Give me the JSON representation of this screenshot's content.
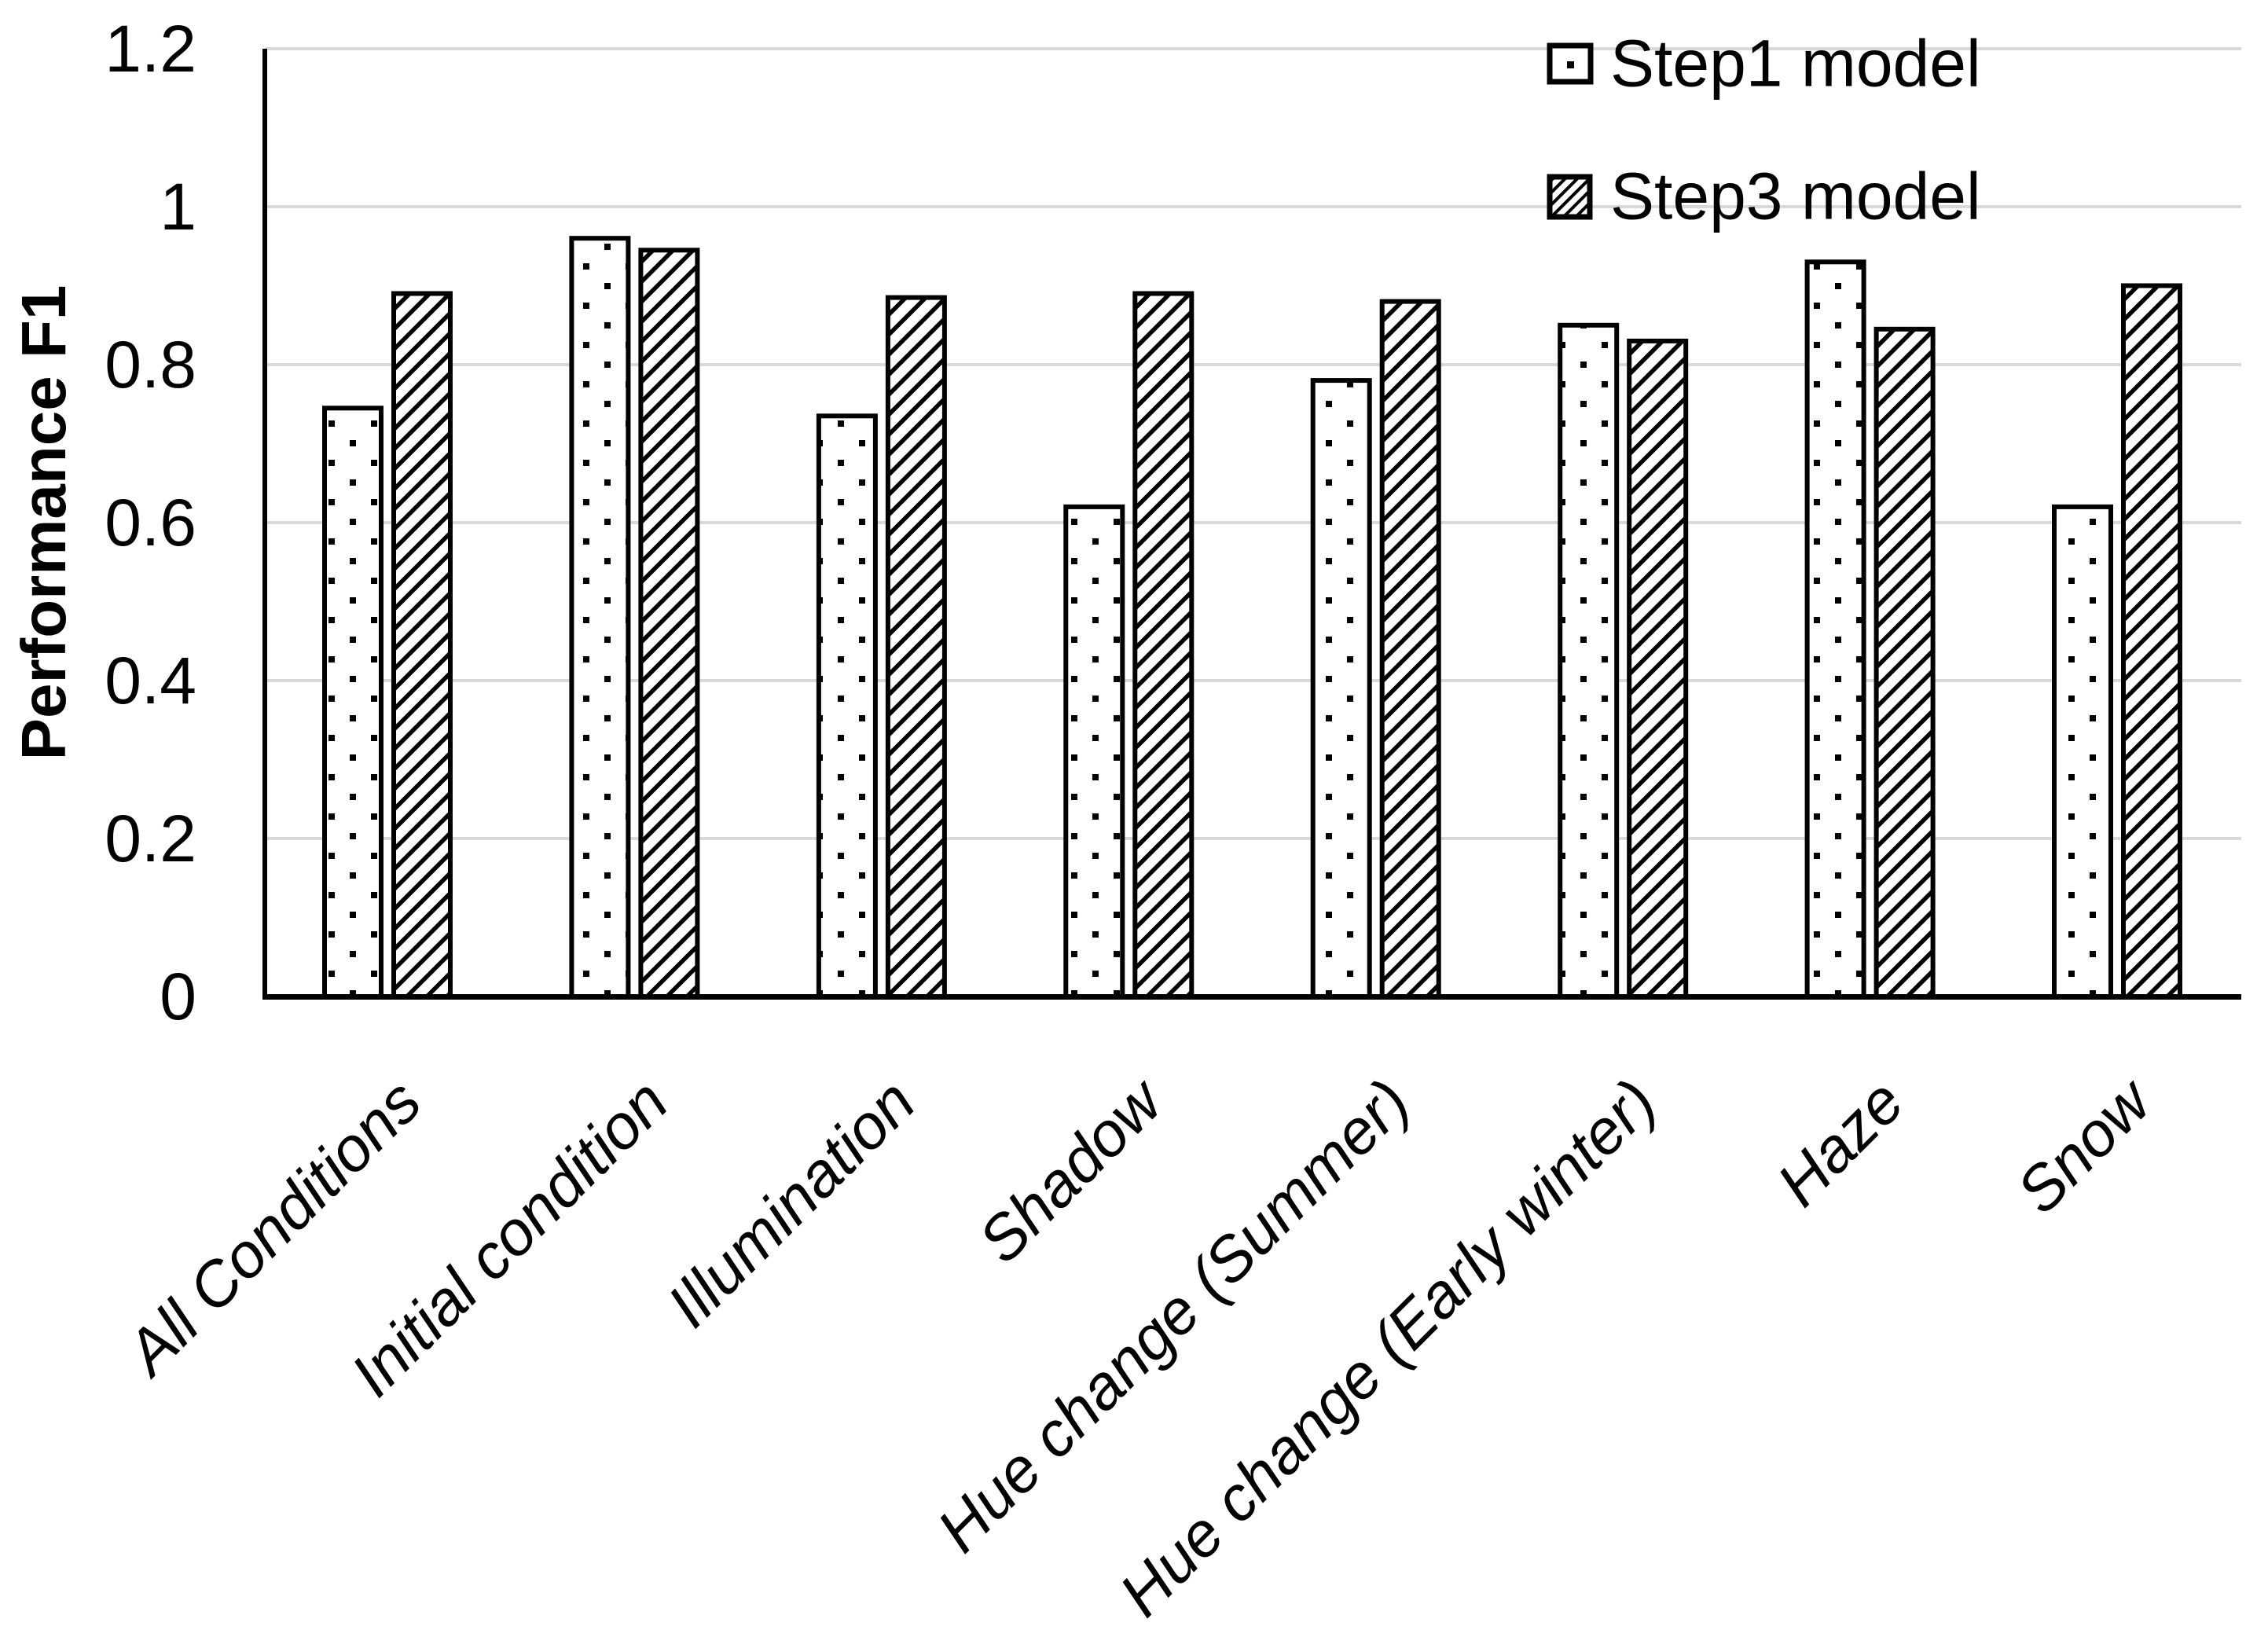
{
  "chart_data": {
    "type": "bar",
    "title": "",
    "xlabel": "",
    "ylabel": "Performance F1",
    "categories": [
      "All Conditions",
      "Initial condition",
      "Illumination",
      "Shadow",
      "Hue change (Summer)",
      "Hue change (Early winter)",
      "Haze",
      "Snow"
    ],
    "series": [
      {
        "name": "Step1 model",
        "pattern": "dotted-square",
        "values": [
          0.745,
          0.96,
          0.735,
          0.62,
          0.78,
          0.85,
          0.93,
          0.62
        ]
      },
      {
        "name": "Step3 model",
        "pattern": "diagonal-hatch",
        "values": [
          0.89,
          0.945,
          0.885,
          0.89,
          0.88,
          0.83,
          0.845,
          0.9
        ]
      }
    ],
    "ylim": [
      0,
      1.2
    ],
    "ytick_step": 0.2,
    "ytick_labels": [
      "0",
      "0.2",
      "0.4",
      "0.6",
      "0.8",
      "1",
      "1.2"
    ],
    "grid": true,
    "legend_position": "top-right",
    "x_label_rotation_deg": -45,
    "colors": {
      "bar_fill": "#ffffff",
      "bar_border": "#000000",
      "gridline": "#d9d9d9",
      "axis": "#000000",
      "text": "#000000"
    }
  },
  "legend": {
    "items": [
      {
        "label": "Step1 model",
        "marker": "dotted-square"
      },
      {
        "label": "Step3 model",
        "marker": "hatched-square"
      }
    ]
  }
}
